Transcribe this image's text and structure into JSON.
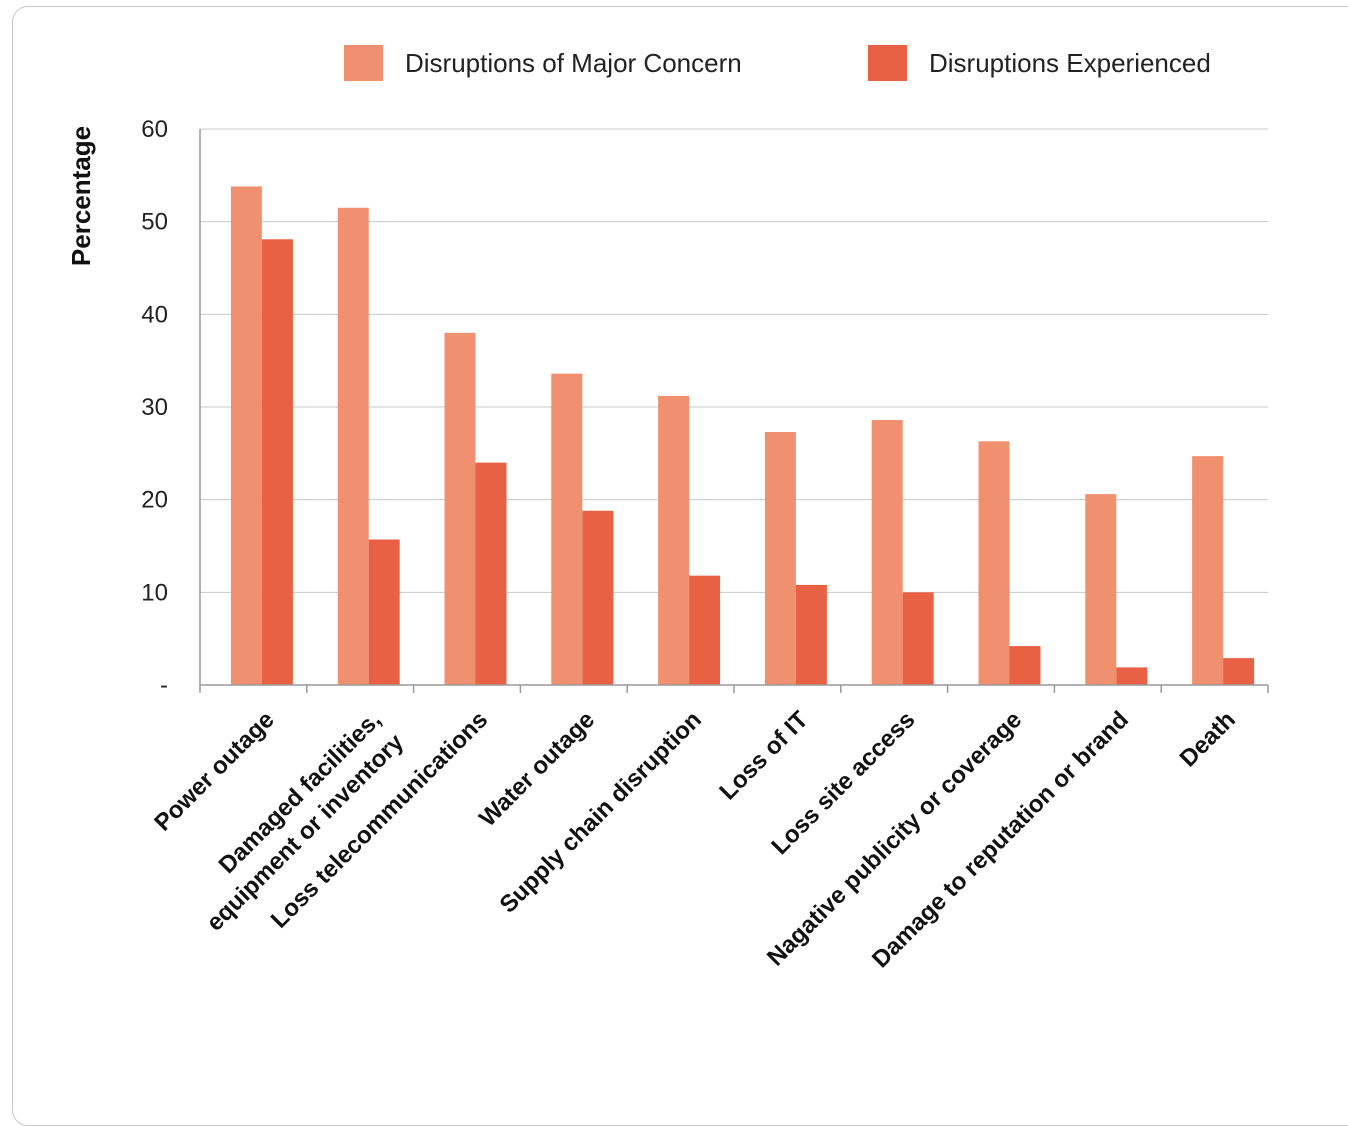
{
  "chart_data": {
    "type": "bar",
    "title": "",
    "xlabel": "",
    "ylabel": "Percentage",
    "ylim": [
      0,
      60
    ],
    "yticks": [
      0,
      10,
      20,
      30,
      40,
      50,
      60
    ],
    "ytick_labels": [
      "-",
      "10",
      "20",
      "30",
      "40",
      "50",
      "60"
    ],
    "grid": true,
    "legend_position": "top-right",
    "categories": [
      "Power outage",
      "Damaged facilities, equipment or inventory",
      "Loss telecommunications",
      "Water outage",
      "Supply chain disruption",
      "Loss of IT",
      "Loss site access",
      "Nagative publicity or coverage",
      "Damage to reputation or brand",
      "Death"
    ],
    "category_lines": [
      [
        "Power outage"
      ],
      [
        "Damaged facilities,",
        "equipment or inventory"
      ],
      [
        "Loss telecommunications"
      ],
      [
        "Water outage"
      ],
      [
        "Supply chain disruption"
      ],
      [
        "Loss of IT"
      ],
      [
        "Loss site access"
      ],
      [
        "Nagative publicity or coverage"
      ],
      [
        "Damage to reputation or brand"
      ],
      [
        "Death"
      ]
    ],
    "series": [
      {
        "name": "Disruptions of Major Concern",
        "color": "#f0906e",
        "values": [
          53.8,
          51.5,
          38.0,
          33.6,
          31.2,
          27.3,
          28.6,
          26.3,
          20.6,
          24.7
        ]
      },
      {
        "name": "Disruptions Experienced",
        "color": "#e86145",
        "values": [
          48.1,
          15.7,
          24.0,
          18.8,
          11.8,
          10.8,
          10.0,
          4.2,
          1.9,
          2.9
        ]
      }
    ]
  }
}
